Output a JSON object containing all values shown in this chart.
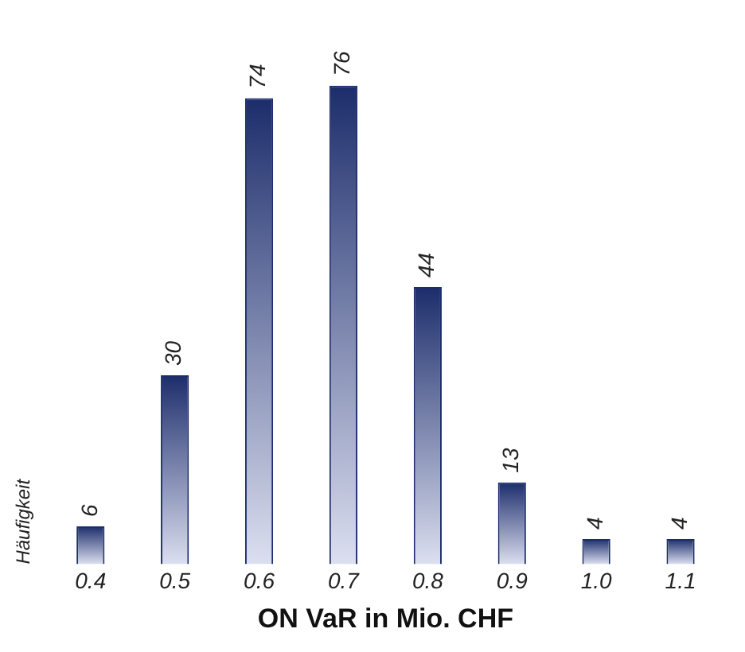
{
  "chart_data": {
    "type": "bar",
    "xlabel": "ON VaR in Mio. CHF",
    "ylabel": "Häufigkeit",
    "categories": [
      "0.4",
      "0.5",
      "0.6",
      "0.7",
      "0.8",
      "0.9",
      "1.0",
      "1.1"
    ],
    "values": [
      6,
      30,
      74,
      76,
      44,
      13,
      4,
      4
    ],
    "color": "#1c2d6b",
    "data_labels": true,
    "grid": false,
    "legend": false
  }
}
